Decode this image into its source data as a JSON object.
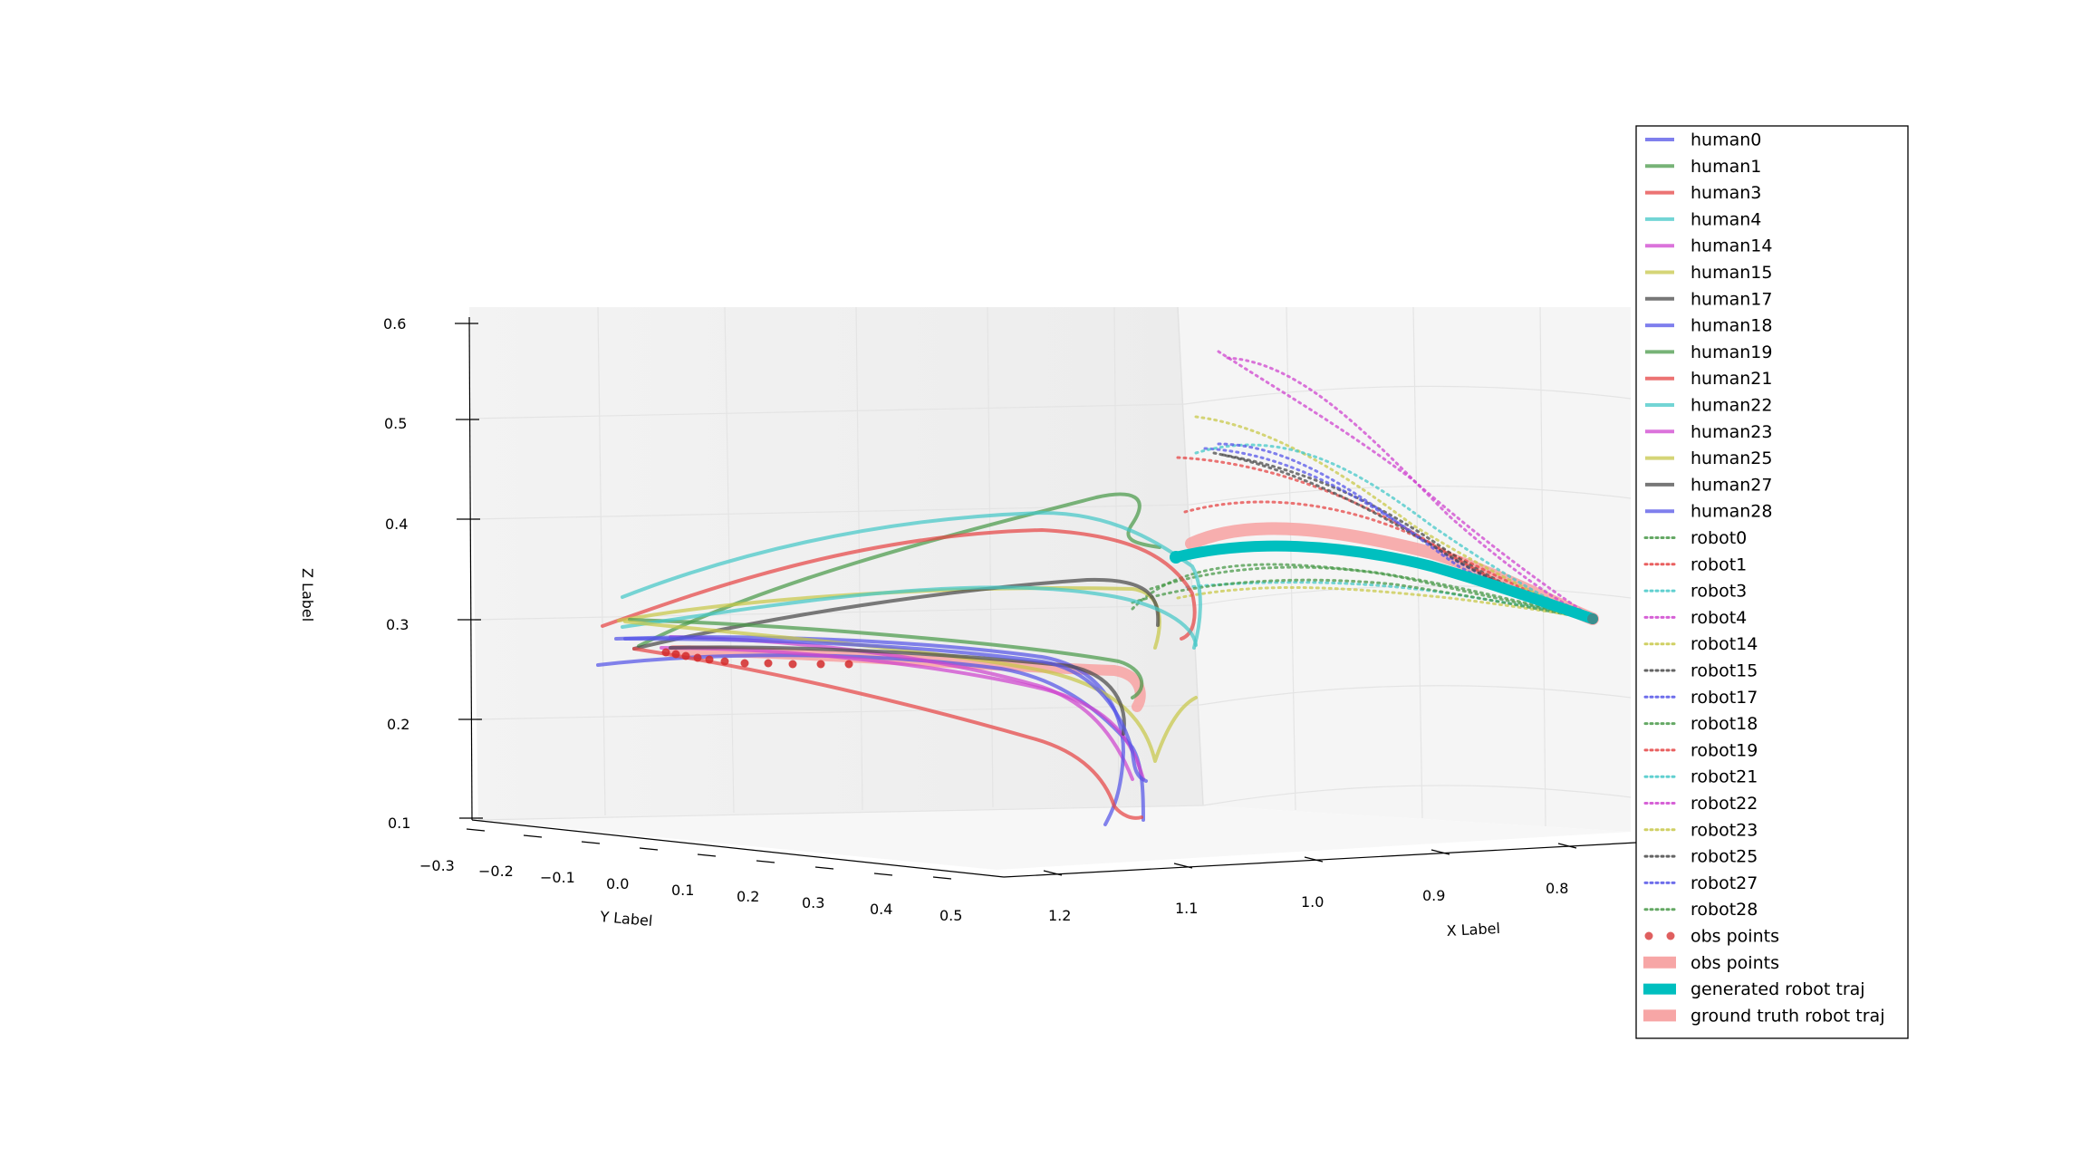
{
  "chart_data": {
    "type": "line",
    "title": "",
    "xlabel": "X Label",
    "ylabel": "Y Label",
    "zlabel": "Z Label",
    "x_ticks": [
      "1.2",
      "1.1",
      "1.0",
      "0.9",
      "0.8"
    ],
    "y_ticks": [
      "−0.3",
      "−0.2",
      "−0.1",
      "0.0",
      "0.1",
      "0.2",
      "0.3",
      "0.4",
      "0.5"
    ],
    "z_ticks": [
      "0.6",
      "0.5",
      "0.4",
      "0.3",
      "0.2",
      "0.1"
    ],
    "xlim": [
      1.25,
      0.75
    ],
    "ylim": [
      -0.3,
      0.5
    ],
    "zlim": [
      0.1,
      0.6
    ],
    "grid": true,
    "legend_placement": "right",
    "colors": {
      "blue": "#5555e8",
      "green": "#4a9a4a",
      "red": "#e64545",
      "cyan": "#45c8c8",
      "magenta": "#cf45cf",
      "olive": "#c8c84a",
      "gray": "#4a4a4a",
      "obs_dot": "#d42a2a",
      "obs_band": "#f7a6a6",
      "generated": "#00bfbf",
      "ground_truth": "#f7a6a6"
    },
    "series": [
      {
        "name": "human0",
        "style": "solid",
        "color": "blue"
      },
      {
        "name": "human1",
        "style": "solid",
        "color": "green"
      },
      {
        "name": "human3",
        "style": "solid",
        "color": "red"
      },
      {
        "name": "human4",
        "style": "solid",
        "color": "cyan"
      },
      {
        "name": "human14",
        "style": "solid",
        "color": "magenta"
      },
      {
        "name": "human15",
        "style": "solid",
        "color": "olive"
      },
      {
        "name": "human17",
        "style": "solid",
        "color": "gray"
      },
      {
        "name": "human18",
        "style": "solid",
        "color": "blue"
      },
      {
        "name": "human19",
        "style": "solid",
        "color": "green"
      },
      {
        "name": "human21",
        "style": "solid",
        "color": "red"
      },
      {
        "name": "human22",
        "style": "solid",
        "color": "cyan"
      },
      {
        "name": "human23",
        "style": "solid",
        "color": "magenta"
      },
      {
        "name": "human25",
        "style": "solid",
        "color": "olive"
      },
      {
        "name": "human27",
        "style": "solid",
        "color": "gray"
      },
      {
        "name": "human28",
        "style": "solid",
        "color": "blue"
      },
      {
        "name": "robot0",
        "style": "dotted",
        "color": "green"
      },
      {
        "name": "robot1",
        "style": "dotted",
        "color": "red"
      },
      {
        "name": "robot3",
        "style": "dotted",
        "color": "cyan"
      },
      {
        "name": "robot4",
        "style": "dotted",
        "color": "magenta"
      },
      {
        "name": "robot14",
        "style": "dotted",
        "color": "olive"
      },
      {
        "name": "robot15",
        "style": "dotted",
        "color": "gray"
      },
      {
        "name": "robot17",
        "style": "dotted",
        "color": "blue"
      },
      {
        "name": "robot18",
        "style": "dotted",
        "color": "green"
      },
      {
        "name": "robot19",
        "style": "dotted",
        "color": "red"
      },
      {
        "name": "robot21",
        "style": "dotted",
        "color": "cyan"
      },
      {
        "name": "robot22",
        "style": "dotted",
        "color": "magenta"
      },
      {
        "name": "robot23",
        "style": "dotted",
        "color": "olive"
      },
      {
        "name": "robot25",
        "style": "dotted",
        "color": "gray"
      },
      {
        "name": "robot27",
        "style": "dotted",
        "color": "blue"
      },
      {
        "name": "robot28",
        "style": "dotted",
        "color": "green"
      },
      {
        "name": "obs points",
        "style": "dots",
        "color": "obs_dot"
      },
      {
        "name": "obs points",
        "style": "band",
        "color": "obs_band"
      },
      {
        "name": "generated robot traj",
        "style": "thick",
        "color": "generated"
      },
      {
        "name": "ground truth robot traj",
        "style": "band",
        "color": "ground_truth"
      }
    ]
  }
}
